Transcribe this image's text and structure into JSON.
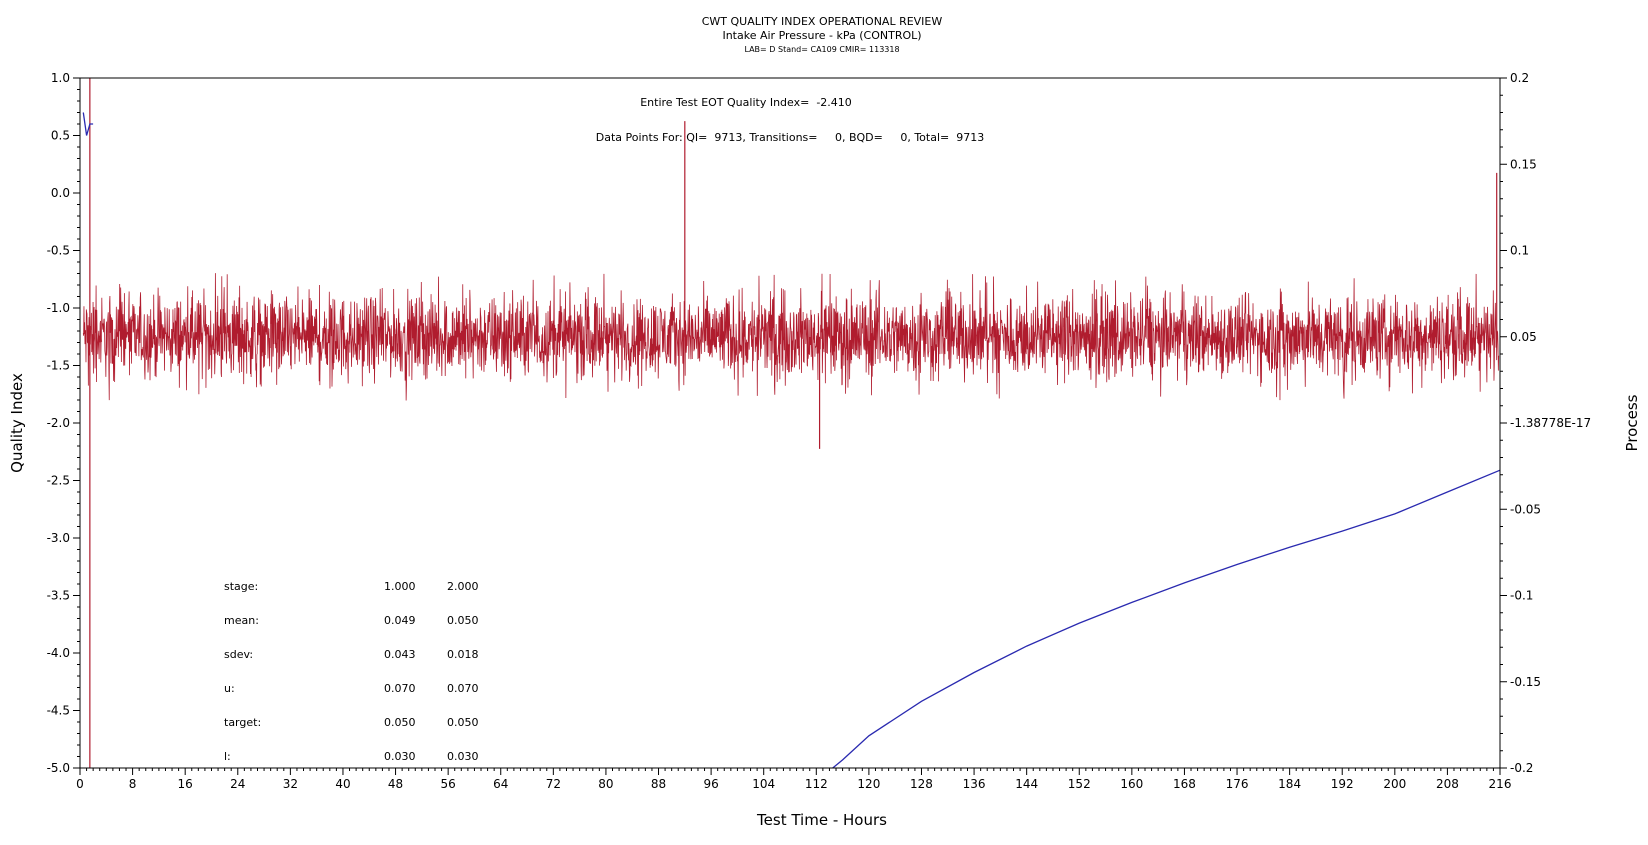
{
  "chart_data": {
    "type": "line",
    "title": "CWT QUALITY INDEX OPERATIONAL REVIEW",
    "subtitle": "Intake Air Pressure - kPa (CONTROL)",
    "subsubtitle": "LAB= D Stand= CA109 CMIR= 113318",
    "xlabel": "Test Time - Hours",
    "ylabel": "Quality Index",
    "y2label": "Process",
    "xlim": [
      0,
      216
    ],
    "ylim": [
      -5.0,
      1.0
    ],
    "y2lim": [
      -0.2,
      0.2
    ],
    "grid": false,
    "x_ticks_major": [
      "0",
      "8",
      "16",
      "24",
      "32",
      "40",
      "48",
      "56",
      "64",
      "72",
      "80",
      "88",
      "96",
      "104",
      "112",
      "120",
      "128",
      "136",
      "144",
      "152",
      "160",
      "168",
      "176",
      "184",
      "192",
      "200",
      "208",
      "216"
    ],
    "y_ticks": [
      "1.0",
      "0.5",
      "0.0",
      "-0.5",
      "-1.0",
      "-1.5",
      "-2.0",
      "-2.5",
      "-3.0",
      "-3.5",
      "-4.0",
      "-4.5",
      "-5.0"
    ],
    "y2_ticks": [
      "0.2",
      "0.15",
      "0.1",
      "0.05",
      "-1.38778E-17",
      "-0.05",
      "-0.1",
      "-0.15",
      "-0.2"
    ],
    "annotations": {
      "quality_index_line": "Entire Test EOT Quality Index=  -2.410",
      "data_points_line": "Data Points For: QI=  9713, Transitions=     0, BQD=     0, Total=  9713"
    },
    "stats_table": {
      "rows": [
        {
          "label": "stage:",
          "v1": "1.000",
          "v2": "2.000"
        },
        {
          "label": "mean:",
          "v1": "0.049",
          "v2": "0.050"
        },
        {
          "label": "sdev:",
          "v1": "0.043",
          "v2": "0.018"
        },
        {
          "label": "u:",
          "v1": "0.070",
          "v2": "0.070"
        },
        {
          "label": "target:",
          "v1": "0.050",
          "v2": "0.050"
        },
        {
          "label": "l:",
          "v1": "0.030",
          "v2": "0.030"
        }
      ]
    },
    "series": [
      {
        "axis": "right",
        "color": "#b01c2e",
        "description": "dense process trace around 0.05, range roughly 0.015 to 0.085",
        "baseline": 0.05,
        "spread": 0.018,
        "x": [
          0,
          216
        ],
        "spikes": [
          {
            "x": 1.5,
            "y": 0.2
          },
          {
            "x": 1.5,
            "y": -0.2
          },
          {
            "x": 92,
            "y": 0.175
          },
          {
            "x": 112.5,
            "y": -0.015
          },
          {
            "x": 215.5,
            "y": 0.145
          }
        ]
      },
      {
        "axis": "left",
        "color": "#2a2ab0",
        "description": "cumulative quality index",
        "x": [
          0.5,
          1.0,
          1.5,
          2.0,
          114.5,
          116,
          120,
          128,
          136,
          144,
          152,
          160,
          168,
          176,
          184,
          192,
          200,
          208,
          216
        ],
        "y": [
          0.7,
          0.5,
          0.6,
          0.6,
          -5.0,
          -4.93,
          -4.72,
          -4.42,
          -4.17,
          -3.94,
          -3.74,
          -3.56,
          -3.39,
          -3.23,
          -3.08,
          -2.94,
          -2.79,
          -2.6,
          -2.41
        ]
      }
    ]
  }
}
